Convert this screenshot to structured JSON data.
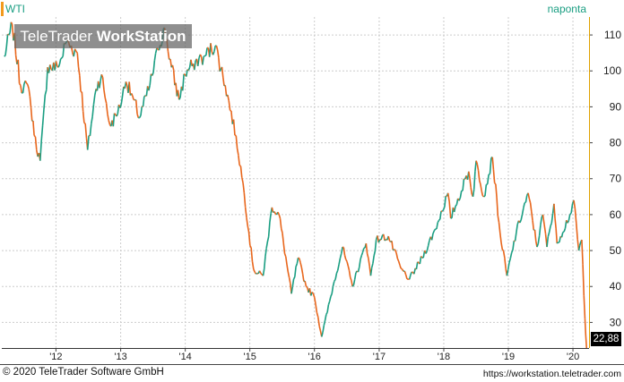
{
  "header": {
    "symbol": "WTI",
    "period": "naponta",
    "watermark_normal": "TeleTrader ",
    "watermark_bold": "WorkStation"
  },
  "footer": {
    "copyright": "© 2020 TeleTrader Software GmbH",
    "url": "https://workstation.teletrader.com"
  },
  "last_price_label": "22,88",
  "colors": {
    "up": "#1a9e82",
    "down": "#e8661c",
    "grid": "#cccccc",
    "axis_frame": "#e0a000",
    "symbol_text": "#1a9e82"
  },
  "chart_data": {
    "type": "line",
    "title": "",
    "xlabel": "",
    "ylabel": "",
    "x_ticks": [
      "'12",
      "'13",
      "'14",
      "'15",
      "'16",
      "'17",
      "'18",
      "'19",
      "'20"
    ],
    "y_ticks": [
      30,
      40,
      50,
      60,
      70,
      80,
      90,
      100,
      110
    ],
    "xlim": [
      "2011-03-01",
      "2020-04-01"
    ],
    "ylim": [
      22.88,
      115
    ],
    "grid": true,
    "axis_side": "right",
    "last_value": 22.88,
    "series": [
      {
        "values": [
          [
            "2011-03-15",
            104
          ],
          [
            "2011-04-29",
            113
          ],
          [
            "2011-06-15",
            96
          ],
          [
            "2011-08-01",
            95
          ],
          [
            "2011-08-31",
            82
          ],
          [
            "2011-10-04",
            75
          ],
          [
            "2011-11-15",
            101
          ],
          [
            "2012-01-15",
            101
          ],
          [
            "2012-02-29",
            108
          ],
          [
            "2012-05-01",
            105
          ],
          [
            "2012-06-28",
            78
          ],
          [
            "2012-08-15",
            95
          ],
          [
            "2012-09-15",
            99
          ],
          [
            "2012-11-01",
            85
          ],
          [
            "2012-12-15",
            88
          ],
          [
            "2013-01-31",
            97
          ],
          [
            "2013-03-15",
            92
          ],
          [
            "2013-04-18",
            87
          ],
          [
            "2013-06-15",
            96
          ],
          [
            "2013-07-31",
            106
          ],
          [
            "2013-09-06",
            112
          ],
          [
            "2013-10-15",
            101
          ],
          [
            "2013-11-27",
            92
          ],
          [
            "2013-12-31",
            99
          ],
          [
            "2014-02-15",
            102
          ],
          [
            "2014-04-15",
            104
          ],
          [
            "2014-06-20",
            107
          ],
          [
            "2014-08-15",
            96
          ],
          [
            "2014-10-15",
            82
          ],
          [
            "2014-11-30",
            66
          ],
          [
            "2015-01-15",
            47
          ],
          [
            "2015-01-29",
            44
          ],
          [
            "2015-03-17",
            43
          ],
          [
            "2015-05-06",
            62
          ],
          [
            "2015-06-15",
            60
          ],
          [
            "2015-08-24",
            38
          ],
          [
            "2015-10-01",
            48
          ],
          [
            "2015-11-15",
            40
          ],
          [
            "2016-01-01",
            37
          ],
          [
            "2016-02-11",
            26
          ],
          [
            "2016-04-15",
            40
          ],
          [
            "2016-06-08",
            51
          ],
          [
            "2016-08-03",
            40
          ],
          [
            "2016-10-19",
            52
          ],
          [
            "2016-11-14",
            43
          ],
          [
            "2016-12-15",
            53
          ],
          [
            "2017-02-22",
            54
          ],
          [
            "2017-05-04",
            45
          ],
          [
            "2017-06-21",
            42
          ],
          [
            "2017-09-01",
            48
          ],
          [
            "2017-11-15",
            56
          ],
          [
            "2018-01-25",
            66
          ],
          [
            "2018-02-09",
            59
          ],
          [
            "2018-05-22",
            72
          ],
          [
            "2018-06-15",
            65
          ],
          [
            "2018-07-03",
            75
          ],
          [
            "2018-08-15",
            65
          ],
          [
            "2018-10-03",
            76
          ],
          [
            "2018-11-15",
            55
          ],
          [
            "2018-12-24",
            43
          ],
          [
            "2019-02-15",
            55
          ],
          [
            "2019-04-23",
            66
          ],
          [
            "2019-06-12",
            51
          ],
          [
            "2019-07-15",
            60
          ],
          [
            "2019-08-07",
            51
          ],
          [
            "2019-09-16",
            63
          ],
          [
            "2019-10-03",
            52
          ],
          [
            "2019-12-15",
            60
          ],
          [
            "2020-01-06",
            64
          ],
          [
            "2020-02-03",
            50
          ],
          [
            "2020-02-20",
            53
          ],
          [
            "2020-03-09",
            31
          ],
          [
            "2020-03-18",
            22.88
          ]
        ]
      }
    ]
  }
}
